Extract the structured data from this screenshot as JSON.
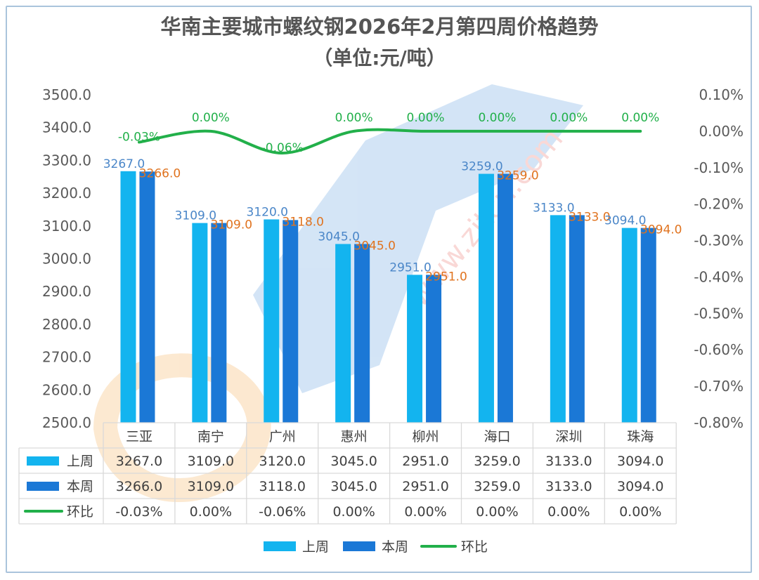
{
  "chart_data": {
    "type": "bar",
    "title_line1": "华南主要城市螺纹钢2026年2月第四周价格趋势",
    "title_line2": "（单位:元/吨）",
    "categories": [
      "三亚",
      "南宁",
      "广州",
      "惠州",
      "柳州",
      "海口",
      "深圳",
      "珠海"
    ],
    "series": [
      {
        "name": "上周",
        "values": [
          3267.0,
          3109.0,
          3120.0,
          3045.0,
          2951.0,
          3259.0,
          3133.0,
          3094.0
        ],
        "color": "#13b4ef"
      },
      {
        "name": "本周",
        "values": [
          3266.0,
          3109.0,
          3118.0,
          3045.0,
          2951.0,
          3259.0,
          3133.0,
          3094.0
        ],
        "color": "#1b78d6"
      },
      {
        "name": "环比",
        "values": [
          -0.03,
          0.0,
          -0.06,
          0.0,
          0.0,
          0.0,
          0.0,
          0.0
        ],
        "color": "#22b04a",
        "axis": "secondary"
      }
    ],
    "ylim": [
      2500,
      3500
    ],
    "y2lim": [
      -0.8,
      0.1
    ],
    "y_ticks": [
      "2500.0",
      "2600.0",
      "2700.0",
      "2800.0",
      "2900.0",
      "3000.0",
      "3100.0",
      "3200.0",
      "3300.0",
      "3400.0",
      "3500.0"
    ],
    "y2_ticks": [
      "-0.80%",
      "-0.70%",
      "-0.60%",
      "-0.50%",
      "-0.40%",
      "-0.30%",
      "-0.20%",
      "-0.10%",
      "0.00%",
      "0.10%"
    ],
    "bar_labels_last": [
      "3267.0",
      "3109.0",
      "3120.0",
      "3045.0",
      "2951.0",
      "3259.0",
      "3133.0",
      "3094.0"
    ],
    "bar_labels_this": [
      "3266.0",
      "3109.0",
      "3118.0",
      "3045.0",
      "2951.0",
      "3259.0",
      "3133.0",
      "3094.0"
    ],
    "pct_labels": [
      "-0.03%",
      "0.00%",
      "-0.06%",
      "0.00%",
      "0.00%",
      "0.00%",
      "0.00%",
      "0.00%"
    ],
    "legend": [
      "上周",
      "本周",
      "环比"
    ],
    "label_colors": {
      "last": "#4a86c8",
      "this": "#e0731f",
      "pct": "#22b04a"
    },
    "watermark": "www.zjtcn.com"
  }
}
